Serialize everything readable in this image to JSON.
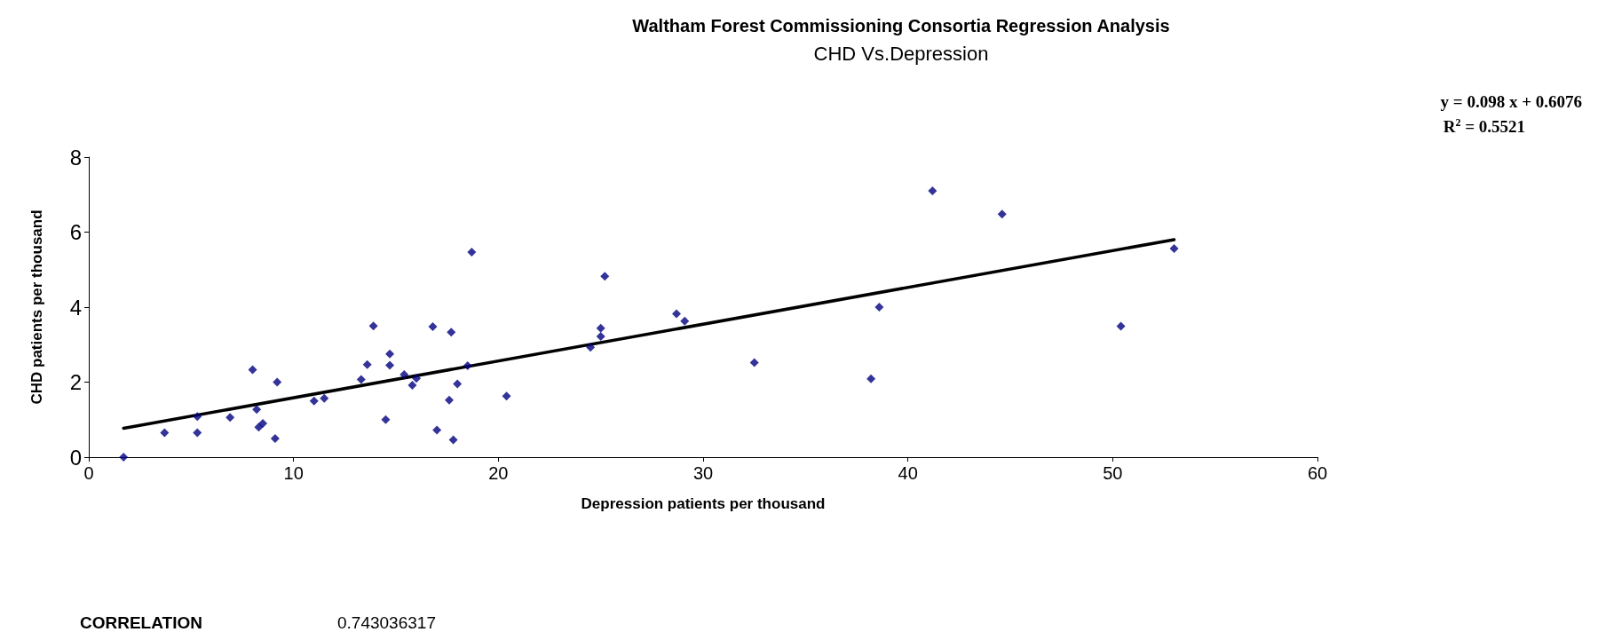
{
  "chart_data": {
    "type": "scatter",
    "title": "Waltham Forest Commissioning Consortia Regression Analysis",
    "subtitle": "CHD Vs.Depression",
    "xlabel": "Depression patients per thousand",
    "ylabel": "CHD patients per thousand",
    "annotations": [
      "y = 0.098 x + 0.6076",
      "R$^{2}$ = 0.5521",
      "CORRELATION",
      "0.743036317"
    ],
    "series": [
      {
        "color": "#000080",
        "marker": "diamond",
        "x": [
          1.7,
          3.7,
          5.3,
          5.3,
          6.9,
          8.0,
          8.2,
          8.3,
          8.5,
          9.1,
          9.2,
          11.0,
          11.5,
          13.3,
          13.6,
          13.9,
          14.5,
          14.7,
          14.7,
          15.4,
          15.8,
          16.0,
          16.8,
          17.0,
          17.6,
          17.7,
          17.8,
          18.0,
          18.5,
          18.7,
          20.4,
          24.5,
          25.0,
          25.0,
          25.2,
          28.7,
          29.1,
          32.5,
          38.2,
          38.6,
          41.2,
          44.6,
          50.4,
          53.0
        ],
        "values": [
          0.0,
          0.65,
          0.65,
          1.08,
          1.06,
          2.33,
          1.27,
          0.8,
          0.9,
          0.5,
          2.0,
          1.5,
          1.57,
          2.07,
          2.47,
          3.5,
          1.0,
          2.75,
          2.45,
          2.2,
          1.92,
          2.1,
          3.48,
          0.72,
          1.52,
          3.33,
          0.46,
          1.95,
          2.44,
          5.47,
          1.63,
          2.93,
          3.44,
          3.22,
          4.82,
          3.82,
          3.63,
          2.52,
          2.09,
          4.0,
          7.1,
          6.48,
          3.49,
          5.56
        ]
      },
      {
        "type": "line",
        "color": "#000000",
        "marker": "none",
        "line_style": "solid",
        "x": [
          1.7,
          53.0
        ],
        "values": [
          0.77,
          5.8
        ]
      }
    ],
    "xlim": [
      0,
      60
    ],
    "xticks": [
      0,
      10,
      20,
      30,
      40,
      50,
      60
    ],
    "ylim": [
      0,
      8
    ],
    "yticks": [
      0,
      2,
      4,
      6,
      8
    ],
    "grid": false
  }
}
